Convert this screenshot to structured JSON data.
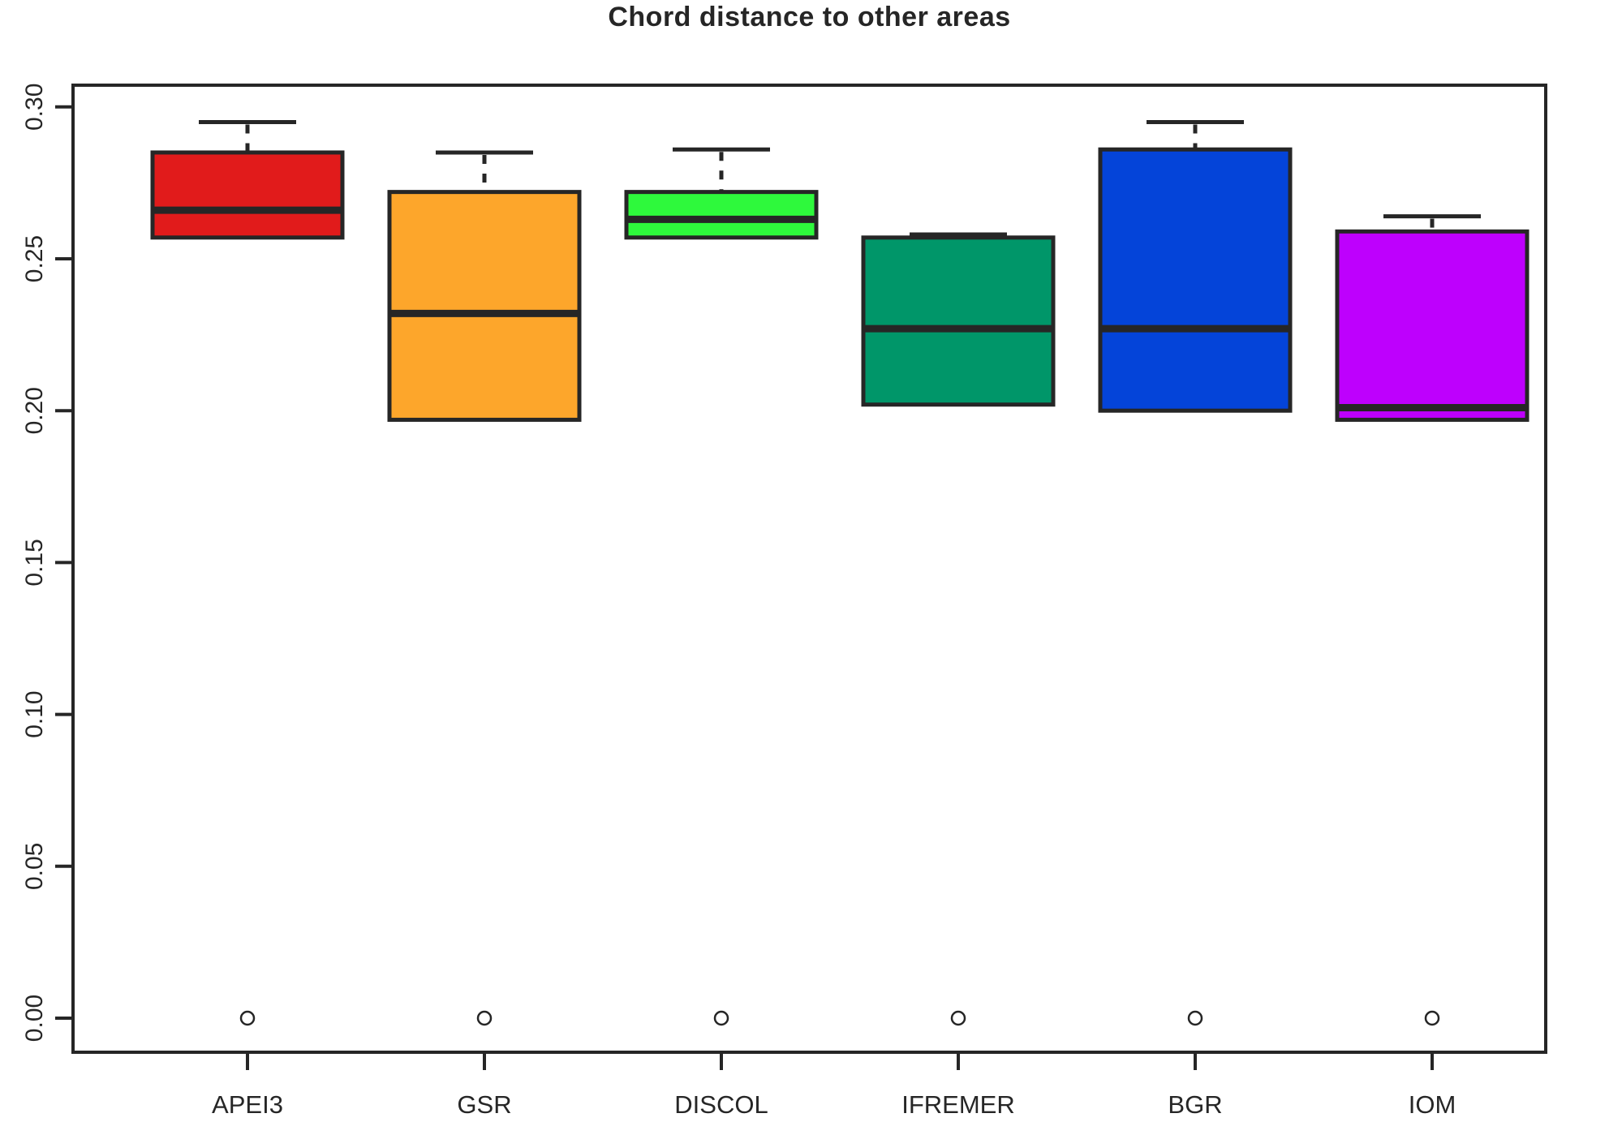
{
  "chart_data": {
    "type": "boxplot",
    "title": "Chord distance to other areas",
    "xlabel": "",
    "ylabel": "",
    "categories": [
      "APEI3",
      "GSR",
      "DISCOL",
      "IFREMER",
      "BGR",
      "IOM"
    ],
    "series": [
      {
        "name": "APEI3",
        "color": "#e11b1b",
        "whisker_low": 0.257,
        "q1": 0.257,
        "median": 0.266,
        "q3": 0.285,
        "whisker_high": 0.295,
        "outliers": [
          0.0
        ]
      },
      {
        "name": "GSR",
        "color": "#fda62b",
        "whisker_low": 0.197,
        "q1": 0.197,
        "median": 0.232,
        "q3": 0.272,
        "whisker_high": 0.285,
        "outliers": [
          0.0
        ]
      },
      {
        "name": "DISCOL",
        "color": "#2ef93c",
        "whisker_low": 0.257,
        "q1": 0.257,
        "median": 0.263,
        "q3": 0.272,
        "whisker_high": 0.286,
        "outliers": [
          0.0
        ]
      },
      {
        "name": "IFREMER",
        "color": "#009669",
        "whisker_low": 0.202,
        "q1": 0.202,
        "median": 0.227,
        "q3": 0.257,
        "whisker_high": 0.258,
        "outliers": [
          0.0
        ]
      },
      {
        "name": "BGR",
        "color": "#0444d9",
        "whisker_low": 0.2,
        "q1": 0.2,
        "median": 0.227,
        "q3": 0.286,
        "whisker_high": 0.295,
        "outliers": [
          0.0
        ]
      },
      {
        "name": "IOM",
        "color": "#be00fd",
        "whisker_low": 0.197,
        "q1": 0.197,
        "median": 0.201,
        "q3": 0.259,
        "whisker_high": 0.264,
        "outliers": [
          0.0
        ]
      }
    ],
    "yticks": [
      0.0,
      0.05,
      0.1,
      0.15,
      0.2,
      0.25,
      0.3
    ],
    "ytick_labels": [
      "0.00",
      "0.05",
      "0.10",
      "0.15",
      "0.20",
      "0.25",
      "0.30"
    ],
    "ylim": [
      -0.011,
      0.307
    ],
    "grid": false,
    "legend": "none",
    "frame_color": "#262626"
  }
}
